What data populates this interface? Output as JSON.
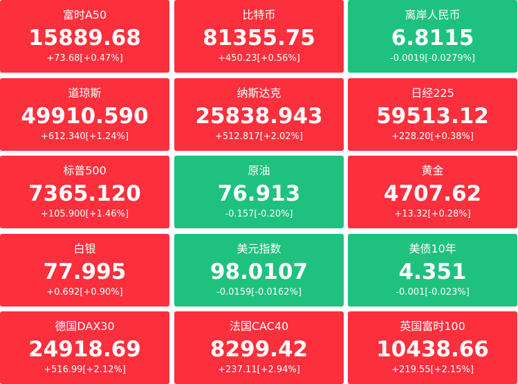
{
  "tiles": [
    {
      "name": "富时A50",
      "price": "15889.68",
      "change": "+73.68[+0.47%]",
      "color": "#fc2f3d"
    },
    {
      "name": "比特币",
      "price": "81355.75",
      "change": "+450.23[+0.56%]",
      "color": "#fc2f3d"
    },
    {
      "name": "离岸人民币",
      "price": "6.8115",
      "change": "-0.0019[-0.0279%]",
      "color": "#1fc17f"
    },
    {
      "name": "道琼斯",
      "price": "49910.590",
      "change": "+612.340[+1.24%]",
      "color": "#fc2f3d"
    },
    {
      "name": "纳斯达克",
      "price": "25838.943",
      "change": "+512.817[+2.02%]",
      "color": "#fc2f3d"
    },
    {
      "name": "日经225",
      "price": "59513.12",
      "change": "+228.20[+0.38%]",
      "color": "#fc2f3d"
    },
    {
      "name": "标普500",
      "price": "7365.120",
      "change": "+105.900[+1.46%]",
      "color": "#fc2f3d"
    },
    {
      "name": "原油",
      "price": "76.913",
      "change": "-0.157[-0.20%]",
      "color": "#1fc17f"
    },
    {
      "name": "黄金",
      "price": "4707.62",
      "change": "+13.32[+0.28%]",
      "color": "#fc2f3d"
    },
    {
      "name": "白银",
      "price": "77.995",
      "change": "+0.692[+0.90%]",
      "color": "#fc2f3d"
    },
    {
      "name": "美元指数",
      "price": "98.0107",
      "change": "-0.0159[-0.0162%]",
      "color": "#1fc17f"
    },
    {
      "name": "美债10年",
      "price": "4.351",
      "change": "-0.001[-0.023%]",
      "color": "#1fc17f"
    },
    {
      "name": "德国DAX30",
      "price": "24918.69",
      "change": "+516.99[+2.12%]",
      "color": "#fc2f3d"
    },
    {
      "name": "法国CAC40",
      "price": "8299.42",
      "change": "+237.11[+2.94%]",
      "color": "#fc2f3d"
    },
    {
      "name": "英国富时100",
      "price": "10438.66",
      "change": "+219.55[+2.15%]",
      "color": "#fc2f3d"
    }
  ]
}
